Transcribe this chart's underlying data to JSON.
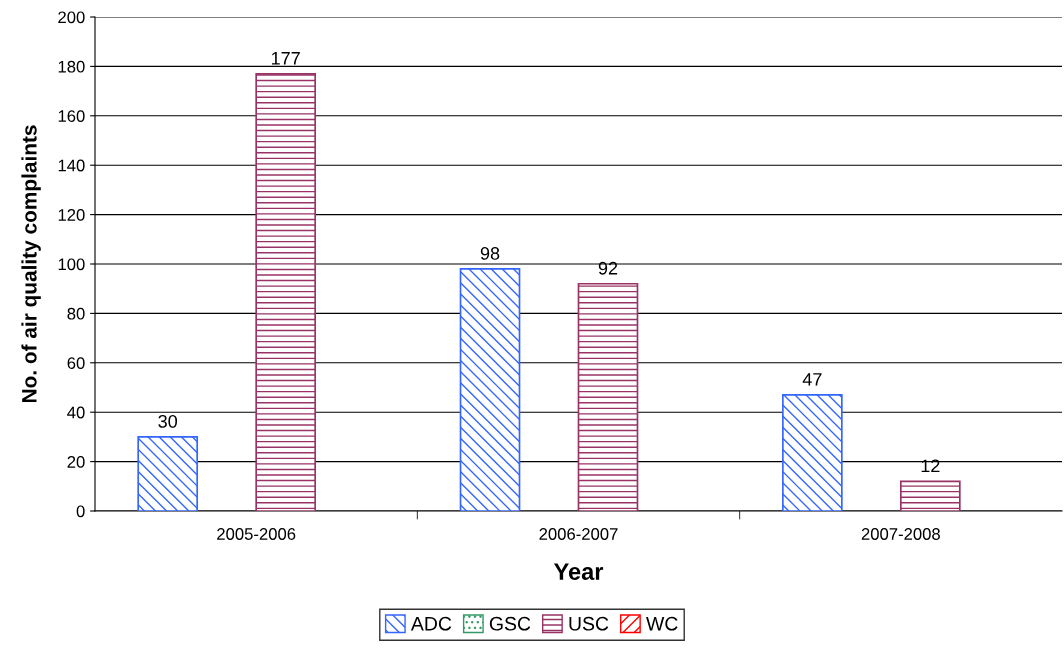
{
  "chart_data": {
    "type": "bar",
    "xlabel": "Year",
    "ylabel": "No. of air quality complaints",
    "categories": [
      "2005-2006",
      "2006-2007",
      "2007-2008"
    ],
    "series": [
      {
        "name": "ADC",
        "color": "#3366ff",
        "values": [
          30,
          98,
          47
        ]
      },
      {
        "name": "GSC",
        "color": "#339966",
        "values": [
          null,
          null,
          null
        ]
      },
      {
        "name": "USC",
        "color": "#993366",
        "values": [
          177,
          92,
          12
        ]
      },
      {
        "name": "WC",
        "color": "#ff0000",
        "values": [
          null,
          null,
          null
        ]
      }
    ],
    "ylim": [
      0,
      200
    ],
    "yticks": [
      0,
      20,
      40,
      60,
      80,
      100,
      120,
      140,
      160,
      180,
      200
    ],
    "grid": "y",
    "legend": "bottom",
    "data_labels": true
  }
}
